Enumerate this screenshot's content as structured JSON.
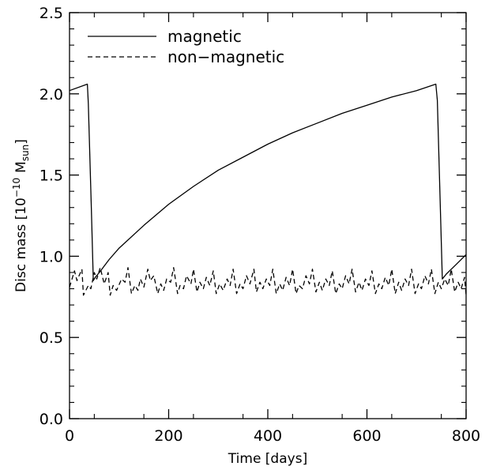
{
  "chart_data": {
    "type": "line",
    "xlabel": "Time [days]",
    "ylabel": {
      "main": "Disc mass [10",
      "exp": "−10",
      "unit": "M",
      "unit_sub": "sun",
      "close": "]"
    },
    "xlim": [
      0,
      800
    ],
    "ylim": [
      0.0,
      2.5
    ],
    "x_ticks": [
      0,
      200,
      400,
      600,
      800
    ],
    "x_tick_labels": [
      "0",
      "200",
      "400",
      "600",
      "800"
    ],
    "y_ticks": [
      0.0,
      0.5,
      1.0,
      1.5,
      2.0,
      2.5
    ],
    "y_tick_labels": [
      "0.0",
      "0.5",
      "1.0",
      "1.5",
      "2.0",
      "2.5"
    ],
    "grid": false,
    "legend_position": "top-left",
    "series": [
      {
        "name": "magnetic",
        "style": "solid",
        "color": "#000000",
        "x": [
          0,
          36,
          38,
          44,
          48,
          52,
          60,
          80,
          100,
          150,
          200,
          250,
          300,
          350,
          400,
          450,
          500,
          550,
          600,
          650,
          700,
          739,
          742,
          748,
          752,
          760,
          780,
          800
        ],
        "y": [
          2.02,
          2.06,
          1.94,
          1.3,
          0.85,
          0.87,
          0.9,
          0.98,
          1.05,
          1.19,
          1.32,
          1.43,
          1.53,
          1.61,
          1.69,
          1.76,
          1.82,
          1.88,
          1.93,
          1.98,
          2.02,
          2.06,
          1.96,
          1.3,
          0.86,
          0.89,
          0.95,
          1.01
        ]
      },
      {
        "name": "non−magnetic",
        "style": "dashed",
        "color": "#000000",
        "x": [
          0,
          10,
          15,
          25,
          28,
          38,
          43,
          50,
          55,
          62,
          70,
          78,
          82,
          88,
          95,
          105,
          112,
          118,
          125,
          132,
          138,
          143,
          150,
          158,
          163,
          170,
          178,
          184,
          190,
          196,
          204,
          210,
          218,
          223,
          230,
          236,
          245,
          250,
          257,
          263,
          270,
          276,
          283,
          290,
          296,
          303,
          310,
          318,
          324,
          330,
          337,
          344,
          350,
          357,
          364,
          372,
          377,
          384,
          390,
          397,
          404,
          410,
          417,
          424,
          430,
          437,
          444,
          450,
          457,
          463,
          470,
          477,
          484,
          490,
          497,
          504,
          510,
          517,
          524,
          530,
          537,
          544,
          550,
          557,
          564,
          570,
          577,
          584,
          590,
          597,
          604,
          610,
          617,
          624,
          630,
          637,
          644,
          650,
          657,
          664,
          670,
          677,
          684,
          690,
          697,
          704,
          710,
          717,
          724,
          730,
          737,
          744,
          750,
          757,
          764,
          770,
          777,
          784,
          790,
          797,
          800
        ],
        "y": [
          0.81,
          0.91,
          0.85,
          0.92,
          0.76,
          0.82,
          0.8,
          0.9,
          0.86,
          0.93,
          0.83,
          0.9,
          0.76,
          0.82,
          0.79,
          0.86,
          0.84,
          0.93,
          0.77,
          0.82,
          0.79,
          0.86,
          0.81,
          0.92,
          0.85,
          0.88,
          0.77,
          0.83,
          0.79,
          0.86,
          0.84,
          0.93,
          0.77,
          0.82,
          0.8,
          0.88,
          0.83,
          0.92,
          0.78,
          0.84,
          0.8,
          0.87,
          0.82,
          0.91,
          0.77,
          0.83,
          0.79,
          0.86,
          0.82,
          0.92,
          0.77,
          0.83,
          0.8,
          0.88,
          0.83,
          0.92,
          0.78,
          0.84,
          0.8,
          0.86,
          0.82,
          0.92,
          0.77,
          0.83,
          0.79,
          0.87,
          0.82,
          0.92,
          0.77,
          0.82,
          0.8,
          0.88,
          0.83,
          0.92,
          0.78,
          0.84,
          0.79,
          0.86,
          0.82,
          0.91,
          0.77,
          0.83,
          0.8,
          0.88,
          0.83,
          0.92,
          0.78,
          0.84,
          0.79,
          0.86,
          0.82,
          0.91,
          0.77,
          0.83,
          0.8,
          0.87,
          0.82,
          0.92,
          0.77,
          0.84,
          0.79,
          0.86,
          0.82,
          0.92,
          0.77,
          0.83,
          0.8,
          0.88,
          0.83,
          0.92,
          0.77,
          0.84,
          0.8,
          0.86,
          0.82,
          0.92,
          0.78,
          0.84,
          0.8,
          0.87,
          0.76
        ]
      }
    ]
  }
}
